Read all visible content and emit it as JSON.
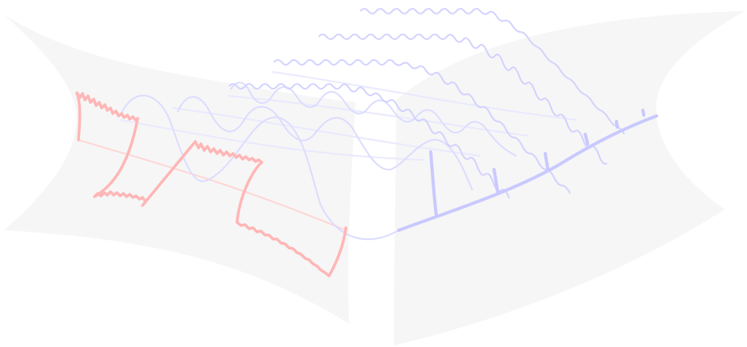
{
  "diagram": {
    "colors": {
      "background": "#ffffff",
      "surface": "#f5f5f5",
      "red_accent": "#ffb6b6",
      "red_light": "#ffd6d6",
      "blue_accent": "#c9c9ff",
      "blue_light": "#e2e2ff"
    },
    "elements": [
      "left-surface",
      "right-surface",
      "red-step-waves",
      "blue-sine-waves",
      "blue-spike-track"
    ]
  }
}
